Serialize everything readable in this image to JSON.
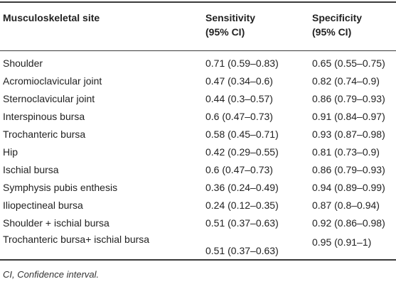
{
  "table": {
    "headers": {
      "site": "Musculoskeletal site",
      "sensitivity_line1": "Sensitivity",
      "sensitivity_line2": "(95% CI)",
      "specificity_line1": "Specificity",
      "specificity_line2": "(95% CI)"
    },
    "rows": [
      {
        "site": "Shoulder",
        "sensitivity": "0.71 (0.59–0.83)",
        "specificity": "0.65 (0.55–0.75)"
      },
      {
        "site": "Acromioclavicular joint",
        "sensitivity": "0.47 (0.34–0.6)",
        "specificity": "0.82 (0.74–0.9)"
      },
      {
        "site": "Sternoclavicular joint",
        "sensitivity": "0.44 (0.3–0.57)",
        "specificity": "0.86 (0.79–0.93)"
      },
      {
        "site": "Interspinous bursa",
        "sensitivity": "0.6 (0.47–0.73)",
        "specificity": "0.91 (0.84–0.97)"
      },
      {
        "site": "Trochanteric bursa",
        "sensitivity": "0.58 (0.45–0.71)",
        "specificity": "0.93 (0.87–0.98)"
      },
      {
        "site": "Hip",
        "sensitivity": "0.42 (0.29–0.55)",
        "specificity": "0.81 (0.73–0.9)"
      },
      {
        "site": "Ischial bursa",
        "sensitivity": "0.6 (0.47–0.73)",
        "specificity": "0.86 (0.79–0.93)"
      },
      {
        "site": "Symphysis pubis enthesis",
        "sensitivity": "0.36 (0.24–0.49)",
        "specificity": "0.94 (0.89–0.99)"
      },
      {
        "site": "Iliopectineal bursa",
        "sensitivity": "0.24 (0.12–0.35)",
        "specificity": "0.87 (0.8–0.94)"
      },
      {
        "site": "Shoulder + ischial bursa",
        "sensitivity": "0.51 (0.37–0.63)",
        "specificity": "0.92 (0.86–0.98)"
      },
      {
        "site": "Trochanteric bursa+ ischial bursa",
        "sensitivity": "0.51 (0.37–0.63)",
        "specificity": "0.95 (0.91–1)"
      }
    ]
  },
  "footnote": "CI, Confidence interval."
}
